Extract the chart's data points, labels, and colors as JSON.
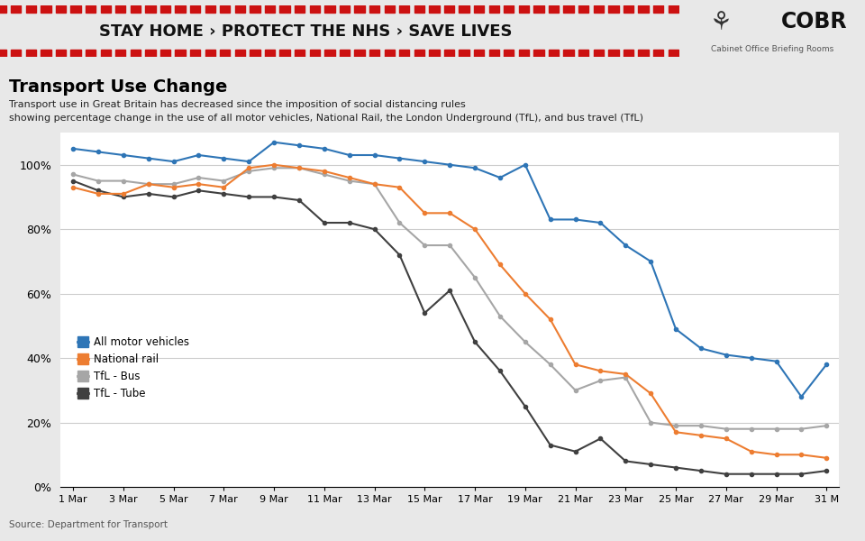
{
  "title": "Transport Use Change",
  "subtitle1": "Transport use in Great Britain has decreased since the imposition of social distancing rules",
  "subtitle2": "showing percentage change in the use of all motor vehicles, National Rail, the London Underground (TfL), and bus travel (TfL)",
  "source": "Source: Department for Transport",
  "banner_text": "STAY HOME › PROTECT THE NHS › SAVE LIVES",
  "cobr_text": "COBR",
  "cobr_sub": "Cabinet Office Briefing Rooms",
  "background_color": "#e8e8e8",
  "banner_bg": "#FFE600",
  "banner_text_color": "#111111",
  "plot_bg": "#ffffff",
  "x_labels": [
    "1 Mar",
    "3 Mar",
    "5 Mar",
    "7 Mar",
    "9 Mar",
    "11 Mar",
    "13 Mar",
    "15 Mar",
    "17 Mar",
    "19 Mar",
    "21 Mar",
    "23 Mar",
    "25 Mar",
    "27 Mar",
    "29 Mar",
    "31 M"
  ],
  "x_ticks": [
    0,
    2,
    4,
    6,
    8,
    10,
    12,
    14,
    16,
    18,
    20,
    22,
    24,
    26,
    28,
    30
  ],
  "all_motor_x": [
    0,
    1,
    2,
    3,
    4,
    5,
    6,
    7,
    8,
    9,
    10,
    11,
    12,
    13,
    14,
    15,
    16,
    17,
    18,
    19,
    20,
    21,
    22,
    23,
    24,
    25,
    26,
    27,
    28,
    29,
    30
  ],
  "all_motor_y": [
    105,
    104,
    103,
    102,
    101,
    103,
    102,
    101,
    107,
    106,
    105,
    103,
    103,
    102,
    101,
    100,
    99,
    96,
    100,
    83,
    83,
    82,
    75,
    70,
    49,
    43,
    41,
    40,
    39,
    28,
    38
  ],
  "national_rail_x": [
    0,
    1,
    2,
    3,
    4,
    5,
    6,
    7,
    8,
    9,
    10,
    11,
    12,
    13,
    14,
    15,
    16,
    17,
    18,
    19,
    20,
    21,
    22,
    23,
    24,
    25,
    26,
    27,
    28,
    29,
    30
  ],
  "national_rail_y": [
    93,
    91,
    91,
    94,
    93,
    94,
    93,
    99,
    100,
    99,
    98,
    96,
    94,
    93,
    85,
    85,
    80,
    69,
    60,
    52,
    38,
    36,
    35,
    29,
    17,
    16,
    15,
    11,
    10,
    10,
    9
  ],
  "tfl_bus_x": [
    0,
    1,
    2,
    3,
    4,
    5,
    6,
    7,
    8,
    9,
    10,
    11,
    12,
    13,
    14,
    15,
    16,
    17,
    18,
    19,
    20,
    21,
    22,
    23,
    24,
    25,
    26,
    27,
    28,
    29,
    30
  ],
  "tfl_bus_y": [
    97,
    95,
    95,
    94,
    94,
    96,
    95,
    98,
    99,
    99,
    97,
    95,
    94,
    82,
    75,
    75,
    65,
    53,
    45,
    38,
    30,
    33,
    34,
    20,
    19,
    19,
    18,
    18,
    18,
    18,
    19
  ],
  "tfl_tube_x": [
    0,
    1,
    2,
    3,
    4,
    5,
    6,
    7,
    8,
    9,
    10,
    11,
    12,
    13,
    14,
    15,
    16,
    17,
    18,
    19,
    20,
    21,
    22,
    23,
    24,
    25,
    26,
    27,
    28,
    29,
    30
  ],
  "tfl_tube_y": [
    95,
    92,
    90,
    91,
    90,
    92,
    91,
    90,
    90,
    89,
    82,
    82,
    80,
    72,
    54,
    61,
    45,
    36,
    25,
    13,
    11,
    15,
    8,
    7,
    6,
    5,
    4,
    4,
    4,
    4,
    5
  ],
  "color_motor": "#2e75b6",
  "color_rail": "#ed7d31",
  "color_bus": "#a6a6a6",
  "color_tube": "#404040",
  "stripe_color": "#cc1111",
  "ylim": [
    0,
    110
  ],
  "yticks": [
    0,
    20,
    40,
    60,
    80,
    100
  ],
  "ytick_labels": [
    "0%",
    "20%",
    "40%",
    "60%",
    "80%",
    "100%"
  ],
  "legend_labels": [
    "All motor vehicles",
    "National rail",
    "TfL - Bus",
    "TfL - Tube"
  ]
}
